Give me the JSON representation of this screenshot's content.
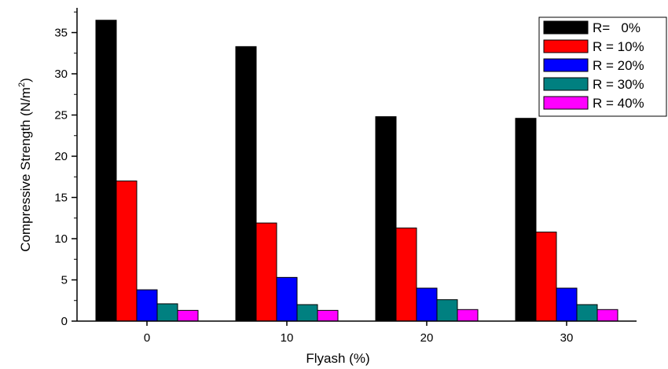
{
  "chart_data": {
    "type": "bar",
    "title": "",
    "xlabel": "Flyash (%)",
    "ylabel_main": "Compressive Strength (N/m",
    "ylabel_sup": "2",
    "ylabel_tail": ")",
    "categories": [
      "0",
      "10",
      "20",
      "30"
    ],
    "ylim": [
      0,
      38
    ],
    "yticks": [
      "0",
      "5",
      "10",
      "15",
      "20",
      "25",
      "30",
      "35"
    ],
    "legend_position": "top-right",
    "grid": false,
    "series": [
      {
        "name": "R=   0%",
        "color": "#000000",
        "values": [
          36.5,
          33.3,
          24.8,
          24.6
        ]
      },
      {
        "name": "R = 10%",
        "color": "#ff0000",
        "values": [
          17.0,
          11.9,
          11.3,
          10.8
        ]
      },
      {
        "name": "R = 20%",
        "color": "#0000ff",
        "values": [
          3.8,
          5.3,
          4.0,
          4.0
        ]
      },
      {
        "name": "R = 30%",
        "color": "#008080",
        "values": [
          2.1,
          2.0,
          2.6,
          2.0
        ]
      },
      {
        "name": "R = 40%",
        "color": "#ff00ff",
        "values": [
          1.3,
          1.3,
          1.4,
          1.4
        ]
      }
    ]
  }
}
